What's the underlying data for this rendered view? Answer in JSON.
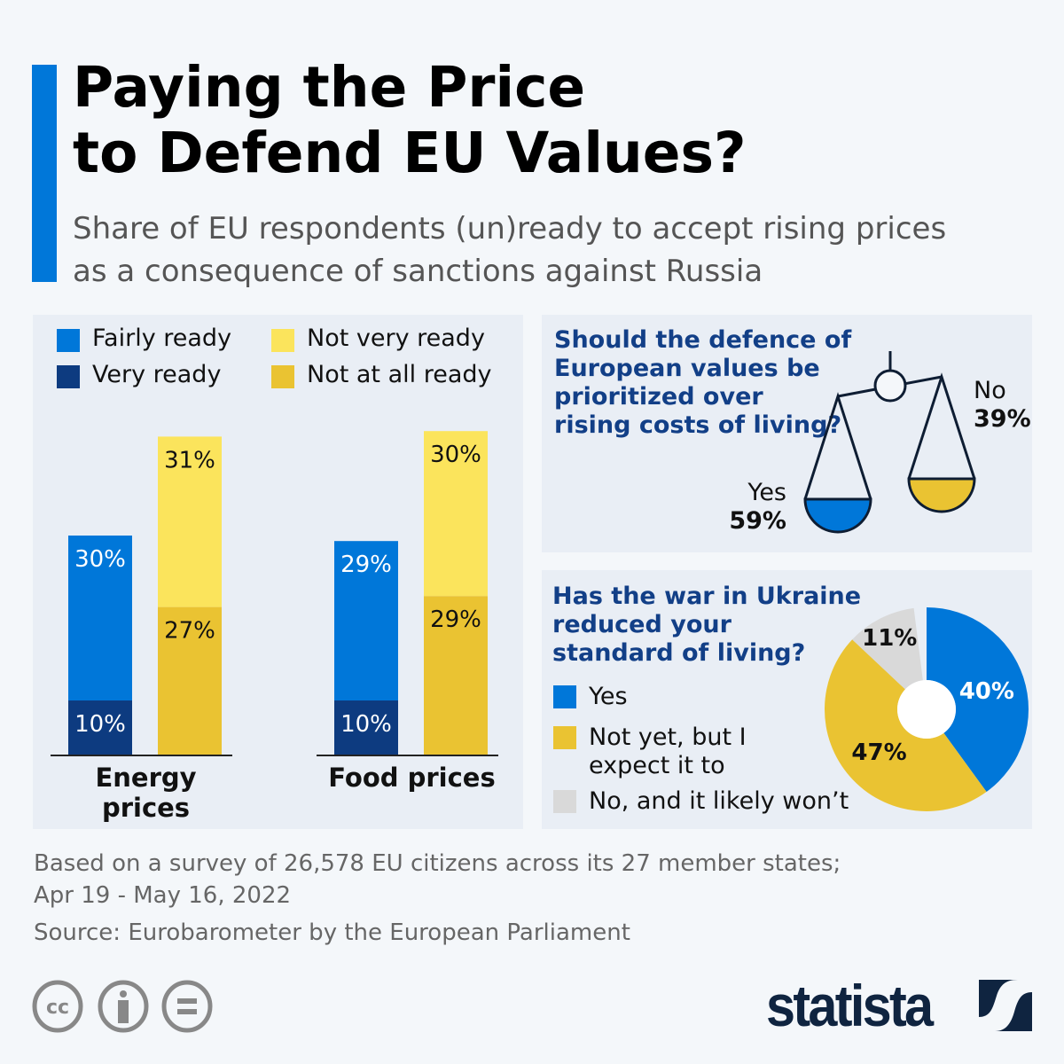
{
  "title_line1": "Paying the Price",
  "title_line2": "to Defend EU Values?",
  "subtitle_line1": "Share of EU respondents (un)ready to accept rising prices",
  "subtitle_line2": "as a consequence of sanctions against Russia",
  "colors": {
    "accent": "#0077d9",
    "fairly_ready": "#0077d9",
    "very_ready": "#0d3b80",
    "not_very_ready": "#fbe45c",
    "not_at_all_ready": "#eac332",
    "grey": "#d9d9d9",
    "question": "#123f87"
  },
  "chart_data": [
    {
      "type": "bar",
      "stacked": true,
      "categories": [
        "Energy prices",
        "Food prices"
      ],
      "legend": [
        "Fairly ready",
        "Very ready",
        "Not very ready",
        "Not at all ready"
      ],
      "series": [
        {
          "name": "Very ready",
          "stack": "ready",
          "values": [
            10,
            10
          ],
          "labels": [
            "10%",
            "10%"
          ]
        },
        {
          "name": "Fairly ready",
          "stack": "ready",
          "values": [
            30,
            29
          ],
          "labels": [
            "30%",
            "29%"
          ]
        },
        {
          "name": "Not at all ready",
          "stack": "not ready",
          "values": [
            27,
            29
          ],
          "labels": [
            "27%",
            "29%"
          ]
        },
        {
          "name": "Not very ready",
          "stack": "not ready",
          "values": [
            31,
            30
          ],
          "labels": [
            "31%",
            "30%"
          ]
        }
      ]
    },
    {
      "type": "pie",
      "title": "Should the defence of European values be prioritized over rising costs of living?",
      "title_lines": [
        "Should the defence of",
        "European values be",
        "prioritized over",
        "rising costs of living?"
      ],
      "labels": [
        "Yes",
        "No"
      ],
      "values": [
        59,
        39
      ],
      "value_labels": [
        "59%",
        "39%"
      ]
    },
    {
      "type": "pie",
      "donut": true,
      "title": "Has the war in Ukraine reduced your standard of living?",
      "title_lines": [
        "Has the war in Ukraine",
        "reduced your",
        "standard of living?"
      ],
      "labels": [
        "Yes",
        "Not yet, but I expect it to",
        "No, and it likely won’t"
      ],
      "legend_lines": [
        [
          "Yes"
        ],
        [
          "Not yet, but I",
          "expect it to"
        ],
        [
          "No, and it likely won’t"
        ]
      ],
      "values": [
        40,
        47,
        11
      ],
      "value_labels": [
        "40%",
        "47%",
        "11%"
      ]
    }
  ],
  "footer": {
    "note_line1": "Based on a survey of 26,578 EU citizens across its 27 member states;",
    "note_line2": "Apr 19 - May 16, 2022",
    "source": "Source: Eurobarometer by the European Parliament"
  },
  "license_icons": [
    "cc-icon",
    "attribution-icon",
    "no-derivatives-icon"
  ],
  "logo_text": "statista"
}
